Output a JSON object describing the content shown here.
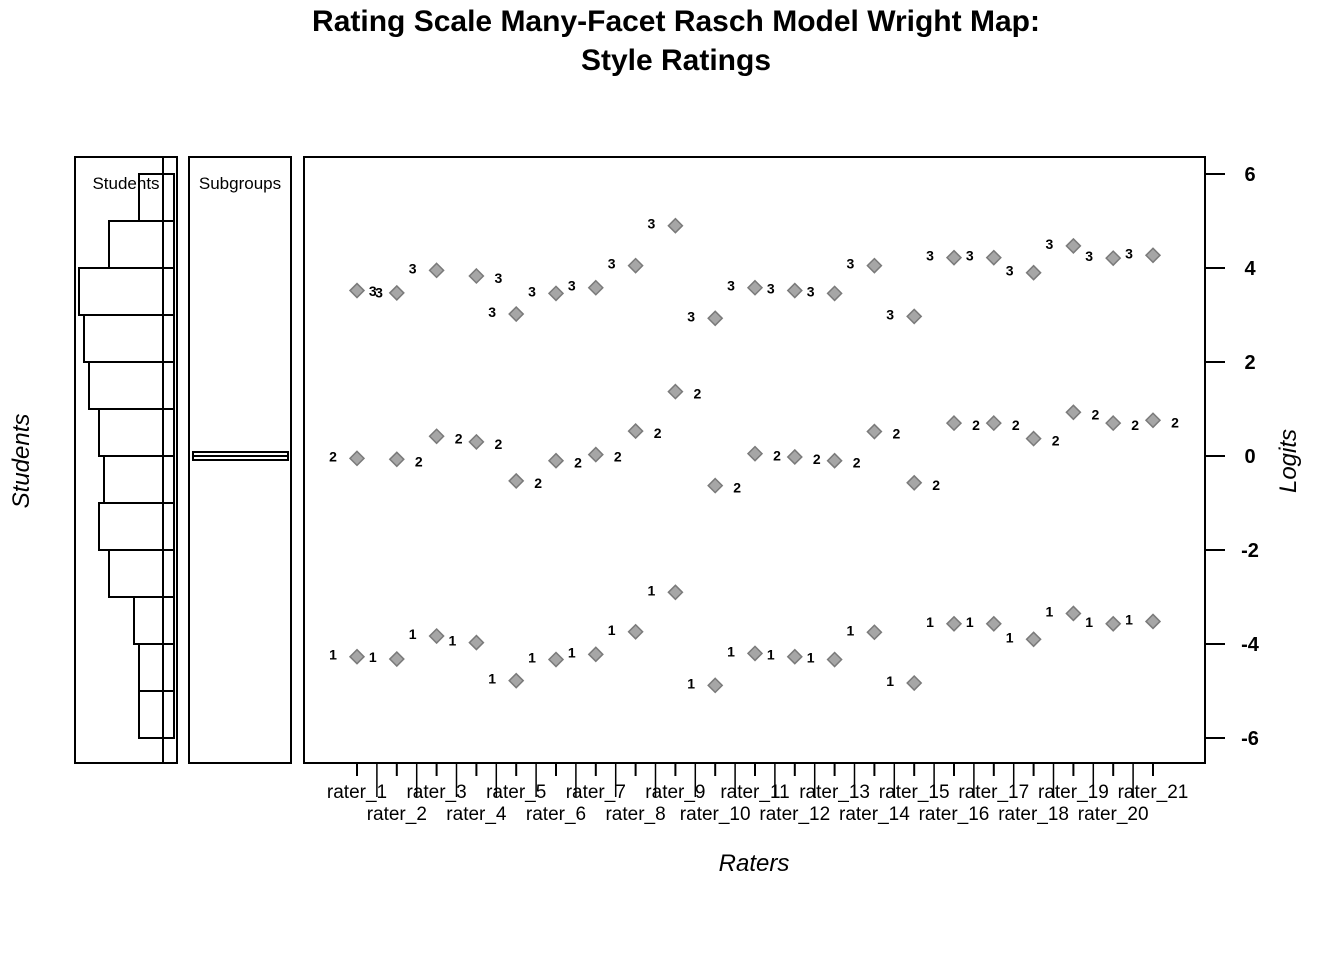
{
  "title_lines": [
    "Rating Scale Many-Facet Rasch Model Wright Map:",
    "Style Ratings"
  ],
  "panels": {
    "students_label": "Students",
    "subgroups_label": "Subgroups"
  },
  "colors": {
    "marker_fill": "#a6a6a6",
    "marker_stroke": "#7a7a7a",
    "axis": "#000000"
  },
  "chart_data": {
    "type": "scatter",
    "title": "Rating Scale Many-Facet Rasch Model Wright Map: Style Ratings",
    "xlabel": "Raters",
    "ylabel_left": "Students",
    "ylabel_right": "Logits",
    "ylim": [
      -6.5,
      6.5
    ],
    "yticks": [
      6,
      4,
      2,
      0,
      -2,
      -4,
      -6
    ],
    "grid": false,
    "categories": [
      "rater_1",
      "rater_2",
      "rater_3",
      "rater_4",
      "rater_5",
      "rater_6",
      "rater_7",
      "rater_8",
      "rater_9",
      "rater_10",
      "rater_11",
      "rater_12",
      "rater_13",
      "rater_14",
      "rater_15",
      "rater_16",
      "rater_17",
      "rater_18",
      "rater_19",
      "rater_20",
      "rater_21"
    ],
    "series": [
      {
        "name": "1",
        "values": [
          -4.27,
          -4.32,
          -3.83,
          -3.97,
          -4.78,
          -4.33,
          -4.22,
          -3.74,
          -2.9,
          -4.88,
          -4.2,
          -4.27,
          -4.33,
          -3.75,
          -4.83,
          -3.57,
          -3.57,
          -3.9,
          -3.35,
          -3.57,
          -3.52
        ]
      },
      {
        "name": "2",
        "values": [
          -0.05,
          -0.07,
          0.42,
          0.3,
          -0.53,
          -0.1,
          0.03,
          0.53,
          1.37,
          -0.63,
          0.05,
          -0.02,
          -0.1,
          0.52,
          -0.57,
          0.7,
          0.7,
          0.37,
          0.93,
          0.7,
          0.76
        ]
      },
      {
        "name": "3",
        "values": [
          3.52,
          3.47,
          3.95,
          3.83,
          3.02,
          3.46,
          3.58,
          4.05,
          4.9,
          2.93,
          3.58,
          3.52,
          3.46,
          4.05,
          2.97,
          4.22,
          4.22,
          3.9,
          4.47,
          4.21,
          4.27
        ]
      }
    ],
    "category_label_side": [
      [
        "left",
        "left",
        "right"
      ],
      [
        "left",
        "right",
        "left"
      ],
      [
        "left",
        "right",
        "left"
      ],
      [
        "left",
        "right",
        "right"
      ],
      [
        "left",
        "right",
        "left"
      ],
      [
        "left",
        "right",
        "left"
      ],
      [
        "left",
        "right",
        "left"
      ],
      [
        "left",
        "right",
        "left"
      ],
      [
        "left",
        "right",
        "left"
      ],
      [
        "left",
        "right",
        "left"
      ],
      [
        "left",
        "right",
        "left"
      ],
      [
        "left",
        "right",
        "left"
      ],
      [
        "left",
        "right",
        "left"
      ],
      [
        "left",
        "right",
        "left"
      ],
      [
        "left",
        "right",
        "left"
      ],
      [
        "left",
        "right",
        "left"
      ],
      [
        "left",
        "right",
        "left"
      ],
      [
        "left",
        "right",
        "left"
      ],
      [
        "left",
        "right",
        "left"
      ],
      [
        "left",
        "right",
        "left"
      ],
      [
        "left",
        "right",
        "left"
      ]
    ],
    "students_histogram": {
      "bin_edges": [
        6.0,
        5.0,
        4.0,
        3.0,
        2.0,
        1.0,
        0.0,
        -1.0,
        -2.0,
        -3.0,
        -4.0,
        -5.0,
        -6.0
      ],
      "counts": [
        7,
        13,
        19,
        18,
        17,
        15,
        14,
        15,
        13,
        8,
        7,
        7
      ]
    },
    "subgroups": {
      "values": [
        0.0
      ]
    }
  }
}
